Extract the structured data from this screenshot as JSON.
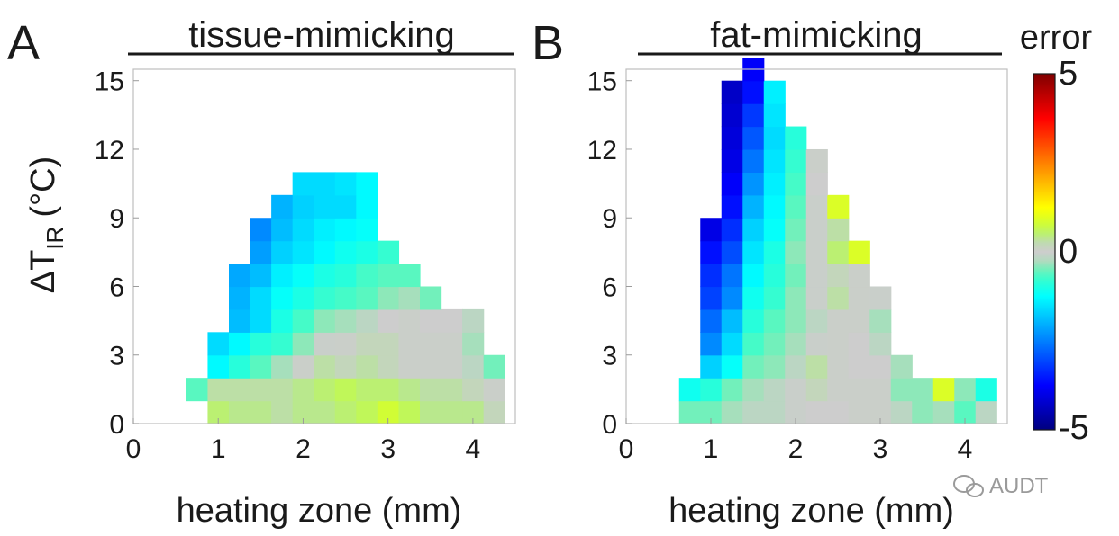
{
  "watermark": "AUDT",
  "colorbar": {
    "title": "error",
    "ticks": [
      "5",
      "0",
      "-5"
    ],
    "range": [
      -5,
      5
    ]
  },
  "chart_data": [
    {
      "type": "heatmap",
      "panel_label": "A",
      "title": "tissue-mimicking",
      "xlabel": "heating zone (mm)",
      "ylabel_main": "ΔT",
      "ylabel_sub": "IR",
      "ylabel_unit": "(°C)",
      "xlim": [
        0,
        4.5
      ],
      "ylim": [
        0,
        15.5
      ],
      "xticks": [
        0,
        1,
        2,
        3,
        4
      ],
      "yticks": [
        0,
        3,
        6,
        9,
        12,
        15
      ],
      "cell_width": 0.25,
      "cell_height": 1,
      "x_start": 0.625,
      "y_start": 0,
      "grid": [
        [
          null,
          0.5,
          0.4,
          0.4,
          0.3,
          0.4,
          0.4,
          0.5,
          0.6,
          0.8,
          0.6,
          0.4,
          0.4,
          0.4,
          0.2
        ],
        [
          -0.6,
          0.3,
          0.3,
          0.3,
          0.3,
          0.4,
          0.5,
          0.6,
          0.5,
          0.5,
          0.4,
          0.3,
          0.3,
          0.2,
          0.1
        ],
        [
          null,
          -1.3,
          -0.9,
          -0.6,
          -0.3,
          0.1,
          0.3,
          0.2,
          0.3,
          0.2,
          0.1,
          0.1,
          0.1,
          -0.2,
          -0.5
        ],
        [
          null,
          -1.6,
          -1.3,
          -0.9,
          -0.8,
          -0.4,
          -0.1,
          0.1,
          0.2,
          0.2,
          0.1,
          0.1,
          0.1,
          -0.3,
          null
        ],
        [
          null,
          null,
          -1.9,
          -1.6,
          -1.0,
          -0.7,
          -0.4,
          -0.3,
          -0.2,
          0.0,
          0.1,
          0.0,
          0.0,
          -0.2,
          null
        ],
        [
          null,
          null,
          -2.0,
          -1.6,
          -1.2,
          -1.0,
          -0.8,
          -0.7,
          -0.6,
          -0.4,
          -0.3,
          -0.5,
          null,
          null,
          null
        ],
        [
          null,
          null,
          -2.1,
          -1.9,
          -1.4,
          -1.2,
          -1.0,
          -0.9,
          -0.7,
          -0.6,
          -0.6,
          null,
          null,
          null,
          null
        ],
        [
          null,
          null,
          null,
          -2.2,
          -1.7,
          -1.5,
          -1.3,
          -1.1,
          -1.0,
          -0.8,
          null,
          null,
          null,
          null,
          null
        ],
        [
          null,
          null,
          null,
          -2.4,
          -1.9,
          -1.6,
          -1.4,
          -1.3,
          -1.2,
          null,
          null,
          null,
          null,
          null,
          null
        ],
        [
          null,
          null,
          null,
          null,
          -2.0,
          -1.7,
          -1.6,
          -1.6,
          -1.3,
          null,
          null,
          null,
          null,
          null,
          null
        ],
        [
          null,
          null,
          null,
          null,
          null,
          -1.6,
          -1.6,
          -1.5,
          -1.3,
          null,
          null,
          null,
          null,
          null,
          null
        ],
        [
          null,
          null,
          null,
          null,
          null,
          null,
          null,
          null,
          null,
          null,
          null,
          null,
          null,
          null,
          null
        ],
        [
          null,
          null,
          null,
          null,
          null,
          null,
          null,
          null,
          null,
          null,
          null,
          null,
          null,
          null,
          null
        ],
        [
          null,
          null,
          null,
          null,
          null,
          null,
          null,
          null,
          null,
          null,
          null,
          null,
          null,
          null,
          null
        ],
        [
          null,
          null,
          null,
          null,
          null,
          null,
          null,
          null,
          null,
          null,
          null,
          null,
          null,
          null,
          null
        ],
        [
          null,
          null,
          null,
          null,
          null,
          null,
          null,
          null,
          null,
          null,
          null,
          null,
          null,
          null,
          null
        ]
      ]
    },
    {
      "type": "heatmap",
      "panel_label": "B",
      "title": "fat-mimicking",
      "xlabel": "heating zone (mm)",
      "xlim": [
        0,
        4.5
      ],
      "ylim": [
        0,
        15.5
      ],
      "xticks": [
        0,
        1,
        2,
        3,
        4
      ],
      "yticks": [
        0,
        3,
        6,
        9,
        12,
        15
      ],
      "cell_width": 0.25,
      "cell_height": 1,
      "x_start": 0.625,
      "y_start": 0,
      "grid": [
        [
          -0.5,
          -0.5,
          -0.3,
          -0.2,
          -0.2,
          -0.1,
          0.0,
          0.0,
          0.1,
          0.1,
          -0.2,
          -0.4,
          -0.3,
          -0.6,
          -0.2
        ],
        [
          -1.1,
          -0.9,
          -0.5,
          -0.3,
          -0.2,
          -0.1,
          0.2,
          0.1,
          0.1,
          0.1,
          -0.4,
          -0.4,
          0.9,
          -0.4,
          -1.0
        ],
        [
          null,
          -1.7,
          -1.2,
          -0.5,
          -0.4,
          -0.2,
          0.3,
          0.1,
          0.0,
          0.0,
          -0.3,
          null,
          null,
          null,
          null
        ],
        [
          null,
          -2.4,
          -1.6,
          -0.7,
          -0.5,
          -0.3,
          -0.1,
          0.1,
          0.0,
          -0.2,
          null,
          null,
          null,
          null,
          null
        ],
        [
          null,
          -2.7,
          -1.9,
          -0.9,
          -0.6,
          -0.4,
          -0.2,
          0.1,
          0.1,
          -0.3,
          null,
          null,
          null,
          null,
          null
        ],
        [
          null,
          -3.1,
          -2.4,
          -1.1,
          -0.8,
          -0.4,
          -0.1,
          0.3,
          0.1,
          -0.1,
          null,
          null,
          null,
          null,
          null
        ],
        [
          null,
          -3.3,
          -2.6,
          -1.3,
          -0.9,
          -0.5,
          -0.1,
          0.2,
          0.1,
          null,
          null,
          null,
          null,
          null,
          null
        ],
        [
          null,
          -3.6,
          -3.0,
          -1.5,
          -1.0,
          -0.4,
          -0.1,
          0.5,
          0.9,
          null,
          null,
          null,
          null,
          null,
          null
        ],
        [
          null,
          -4.0,
          -3.3,
          -1.7,
          -1.2,
          -0.5,
          -0.1,
          0.3,
          null,
          null,
          null,
          null,
          null,
          null,
          null
        ],
        [
          null,
          null,
          -3.6,
          -2.0,
          -1.3,
          -0.6,
          -0.1,
          0.9,
          null,
          null,
          null,
          null,
          null,
          null,
          null
        ],
        [
          null,
          null,
          -3.8,
          -2.3,
          -1.4,
          -0.7,
          0.0,
          null,
          null,
          null,
          null,
          null,
          null,
          null,
          null
        ],
        [
          null,
          null,
          -4.0,
          -2.6,
          -1.5,
          -0.8,
          0.1,
          null,
          null,
          null,
          null,
          null,
          null,
          null,
          null
        ],
        [
          null,
          null,
          -4.1,
          -2.9,
          -1.6,
          -0.9,
          null,
          null,
          null,
          null,
          null,
          null,
          null,
          null,
          null
        ],
        [
          null,
          null,
          -4.2,
          -3.2,
          -1.5,
          null,
          null,
          null,
          null,
          null,
          null,
          null,
          null,
          null,
          null
        ],
        [
          null,
          null,
          -4.3,
          -3.6,
          -1.4,
          null,
          null,
          null,
          null,
          null,
          null,
          null,
          null,
          null,
          null
        ],
        [
          null,
          null,
          null,
          -3.8,
          null,
          null,
          null,
          null,
          null,
          null,
          null,
          null,
          null,
          null,
          null
        ]
      ]
    }
  ]
}
